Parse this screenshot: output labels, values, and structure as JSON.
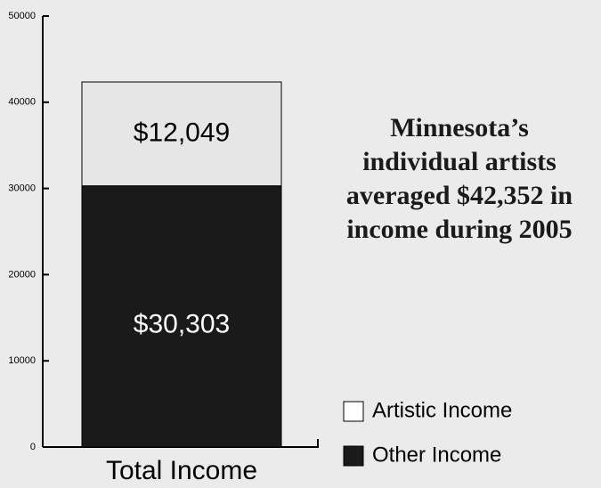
{
  "chart_data": {
    "type": "stacked_bar",
    "categories": [
      "Total Income"
    ],
    "series": [
      {
        "name": "Artistic Income",
        "color": "#e6e6e6",
        "values": [
          12049
        ],
        "value_labels": [
          "$12,049"
        ]
      },
      {
        "name": "Other Income",
        "color": "#1a1a1a",
        "values": [
          30303
        ],
        "value_labels": [
          "$30,303"
        ]
      }
    ],
    "annotation": [
      "Minnesota’s",
      "individual artists",
      "averaged $42,352 in",
      "income during 2005"
    ],
    "ylim": [
      0,
      50000
    ],
    "yticks": [
      0,
      10000,
      20000,
      30000,
      40000,
      50000
    ],
    "legend": "lower right"
  }
}
